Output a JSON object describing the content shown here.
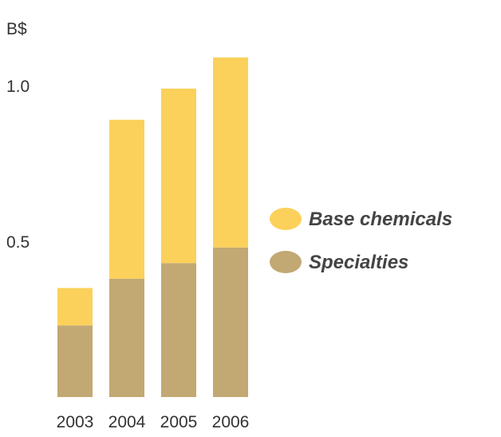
{
  "chart_data": {
    "type": "bar",
    "stacked": true,
    "unit_label": "B$",
    "categories": [
      "2003",
      "2004",
      "2005",
      "2006"
    ],
    "series": [
      {
        "name": "Specialties",
        "values": [
          0.23,
          0.38,
          0.43,
          0.48
        ],
        "color": "#c2a872"
      },
      {
        "name": "Base chemicals",
        "values": [
          0.12,
          0.51,
          0.56,
          0.61
        ],
        "color": "#fbd15b"
      }
    ],
    "legend_order": [
      "Base chemicals",
      "Specialties"
    ],
    "yticks": [
      "0.5",
      "1.0"
    ],
    "ylim": [
      0,
      1.1
    ],
    "grid": false,
    "legend_position": "right"
  }
}
